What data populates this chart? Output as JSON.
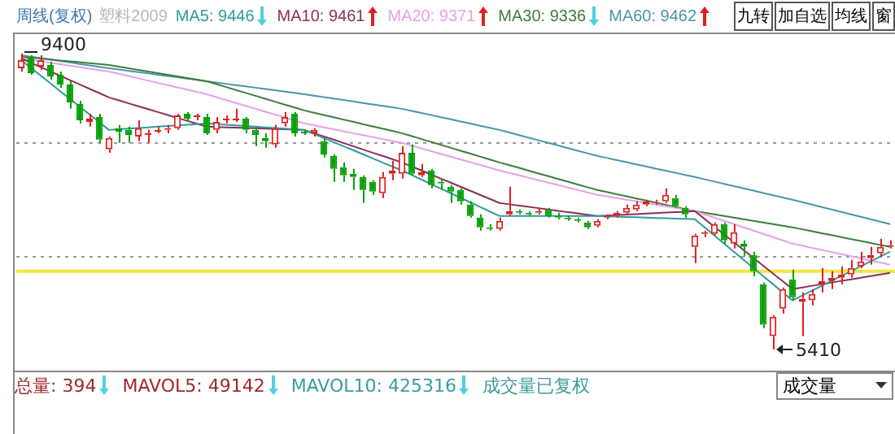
{
  "chart_data": {
    "type": "candlestick",
    "title": "周线(复权)",
    "subtitle": "塑料2009",
    "categories": [
      null,
      null,
      null,
      null,
      null,
      null,
      null,
      null,
      null,
      null,
      null,
      null,
      null,
      null,
      null,
      null,
      null,
      null,
      null,
      null,
      null,
      null,
      null,
      null,
      null,
      null,
      null,
      null,
      null,
      null,
      null,
      null,
      null,
      null,
      null,
      null,
      null,
      null,
      null,
      null,
      null,
      null,
      null,
      null,
      null,
      null,
      null,
      null,
      null,
      null,
      null,
      null,
      null,
      null,
      null,
      null,
      null,
      null,
      null,
      null,
      null,
      null,
      null,
      null,
      null,
      null,
      null,
      null,
      null,
      null,
      null,
      null,
      null,
      null,
      null,
      null,
      null,
      null,
      null,
      null,
      null,
      null,
      null,
      null,
      null,
      null,
      null,
      null,
      null,
      null
    ],
    "ohlc": [
      [
        9203,
        9400,
        9159,
        9313
      ],
      [
        9357,
        9378,
        9116,
        9138
      ],
      [
        9225,
        9378,
        9181,
        9313
      ],
      [
        9247,
        9291,
        9050,
        9094
      ],
      [
        9116,
        9159,
        8940,
        8984
      ],
      [
        8984,
        9028,
        8656,
        8743
      ],
      [
        8721,
        8765,
        8459,
        8502
      ],
      [
        8480,
        8590,
        8415,
        8524
      ],
      [
        8546,
        8590,
        8196,
        8240
      ],
      [
        8108,
        8283,
        8064,
        8262
      ],
      [
        8393,
        8437,
        8196,
        8349
      ],
      [
        8371,
        8415,
        8196,
        8305
      ],
      [
        8283,
        8502,
        8218,
        8393
      ],
      [
        8305,
        8371,
        8196,
        8327
      ],
      [
        8349,
        8415,
        8327,
        8371
      ],
      [
        8371,
        8437,
        8327,
        8393
      ],
      [
        8393,
        8590,
        8371,
        8568
      ],
      [
        8590,
        8612,
        8480,
        8524
      ],
      [
        8546,
        8590,
        8502,
        8568
      ],
      [
        8546,
        8590,
        8305,
        8327
      ],
      [
        8371,
        8546,
        8327,
        8480
      ],
      [
        8502,
        8568,
        8459,
        8524
      ],
      [
        8502,
        8656,
        8480,
        8524
      ],
      [
        8524,
        8546,
        8327,
        8371
      ],
      [
        8371,
        8393,
        8152,
        8305
      ],
      [
        8262,
        8327,
        8130,
        8218
      ],
      [
        8174,
        8437,
        8130,
        8393
      ],
      [
        8459,
        8612,
        8415,
        8546
      ],
      [
        8590,
        8612,
        8283,
        8327
      ],
      [
        8349,
        8371,
        8305,
        8327
      ],
      [
        8327,
        8393,
        8283,
        8371
      ],
      [
        8218,
        8262,
        7999,
        8042
      ],
      [
        8021,
        8042,
        7670,
        7845
      ],
      [
        7867,
        7933,
        7670,
        7758
      ],
      [
        7780,
        7845,
        7561,
        7736
      ],
      [
        7736,
        7758,
        7386,
        7561
      ],
      [
        7670,
        7692,
        7495,
        7539
      ],
      [
        7517,
        7802,
        7451,
        7736
      ],
      [
        7780,
        7955,
        7692,
        7824
      ],
      [
        7780,
        8152,
        7714,
        8064
      ],
      [
        8064,
        8174,
        7758,
        7780
      ],
      [
        7758,
        7911,
        7736,
        7802
      ],
      [
        7824,
        7845,
        7583,
        7627
      ],
      [
        7670,
        7714,
        7561,
        7648
      ],
      [
        7605,
        7627,
        7386,
        7539
      ],
      [
        7561,
        7583,
        7364,
        7407
      ],
      [
        7364,
        7407,
        7188,
        7210
      ],
      [
        7188,
        7232,
        7013,
        7057
      ],
      [
        7057,
        7101,
        7013,
        7035
      ],
      [
        7035,
        7188,
        7013,
        7145
      ],
      [
        7232,
        7605,
        7210,
        7276
      ],
      [
        7276,
        7298,
        7232,
        7254
      ],
      [
        7254,
        7276,
        7210,
        7232
      ],
      [
        7254,
        7320,
        7232,
        7276
      ],
      [
        7298,
        7320,
        7188,
        7210
      ],
      [
        7210,
        7254,
        7166,
        7188
      ],
      [
        7188,
        7210,
        7145,
        7166
      ],
      [
        7166,
        7188,
        7123,
        7145
      ],
      [
        7123,
        7145,
        7035,
        7057
      ],
      [
        7079,
        7166,
        7057,
        7145
      ],
      [
        7188,
        7232,
        7166,
        7210
      ],
      [
        7210,
        7276,
        7188,
        7254
      ],
      [
        7254,
        7364,
        7232,
        7320
      ],
      [
        7298,
        7407,
        7276,
        7364
      ],
      [
        7364,
        7429,
        7342,
        7407
      ],
      [
        7386,
        7429,
        7364,
        7400
      ],
      [
        7407,
        7583,
        7386,
        7495
      ],
      [
        7451,
        7495,
        7320,
        7342
      ],
      [
        7320,
        7342,
        7188,
        7232
      ],
      [
        6794,
        6970,
        6575,
        6947
      ],
      [
        6970,
        7013,
        6926,
        6992
      ],
      [
        6970,
        7123,
        6947,
        7101
      ],
      [
        7101,
        7123,
        6838,
        6882
      ],
      [
        6838,
        7101,
        6772,
        6992
      ],
      [
        6838,
        6882,
        6663,
        6794
      ],
      [
        6685,
        6728,
        6400,
        6466
      ],
      [
        6291,
        6313,
        5699,
        5743
      ],
      [
        5590,
        5874,
        5410,
        5852
      ],
      [
        5962,
        6247,
        5896,
        6225
      ],
      [
        6356,
        6488,
        6072,
        6115
      ],
      [
        6050,
        6181,
        5590,
        6093
      ],
      [
        6072,
        6225,
        6006,
        6159
      ],
      [
        6291,
        6510,
        6181,
        6334
      ],
      [
        6334,
        6466,
        6225,
        6378
      ],
      [
        6378,
        6532,
        6291,
        6422
      ],
      [
        6422,
        6619,
        6378,
        6510
      ],
      [
        6532,
        6728,
        6510,
        6597
      ],
      [
        6641,
        6794,
        6553,
        6685
      ],
      [
        6707,
        6904,
        6663,
        6794
      ],
      [
        6794,
        6882,
        6772,
        6816
      ]
    ],
    "series": [
      {
        "name": "MA5: 9446",
        "type": "line",
        "color": "#2e9c9c",
        "values": [
          9313,
          9208,
          9104,
          8999,
          8894,
          8790,
          8685,
          8580,
          8476,
          8371,
          8380,
          8389,
          8397,
          8406,
          8415,
          8424,
          8433,
          8441,
          8450,
          8459,
          8450,
          8441,
          8433,
          8424,
          8415,
          8406,
          8397,
          8389,
          8380,
          8371,
          8316,
          8262,
          8207,
          8152,
          8098,
          8043,
          7988,
          7933,
          7879,
          7824,
          7763,
          7701,
          7640,
          7578,
          7517,
          7456,
          7394,
          7333,
          7271,
          7210,
          7210,
          7210,
          7210,
          7210,
          7210,
          7210,
          7210,
          7210,
          7210,
          7210,
          7206,
          7202,
          7197,
          7193,
          7188,
          7184,
          7180,
          7175,
          7171,
          7166,
          7057,
          6947,
          6838,
          6728,
          6619,
          6510,
          6400,
          6291,
          6181,
          6072,
          6138,
          6203,
          6269,
          6335,
          6400,
          6466,
          6532,
          6597,
          6663,
          6729
        ]
      },
      {
        "name": "MA10: 9461",
        "type": "line",
        "color": "#8b2f5a",
        "values": [
          9335,
          9277,
          9218,
          9160,
          9101,
          9043,
          8984,
          8926,
          8868,
          8809,
          8770,
          8730,
          8691,
          8651,
          8612,
          8573,
          8533,
          8494,
          8454,
          8415,
          8411,
          8406,
          8402,
          8397,
          8393,
          8389,
          8384,
          8380,
          8375,
          8371,
          8327,
          8283,
          8240,
          8196,
          8152,
          8108,
          8064,
          8021,
          7977,
          7933,
          7878,
          7824,
          7769,
          7714,
          7660,
          7605,
          7550,
          7495,
          7441,
          7386,
          7368,
          7351,
          7333,
          7316,
          7298,
          7280,
          7263,
          7245,
          7228,
          7210,
          7217,
          7223,
          7230,
          7236,
          7243,
          7250,
          7256,
          7263,
          7269,
          7276,
          7171,
          7066,
          6961,
          6856,
          6750,
          6645,
          6540,
          6435,
          6330,
          6225,
          6247,
          6269,
          6291,
          6313,
          6335,
          6356,
          6378,
          6400,
          6422,
          6444
        ]
      },
      {
        "name": "MA20: 9371",
        "type": "line",
        "color": "#e8a0e8",
        "values": [
          9335,
          9315,
          9296,
          9276,
          9257,
          9237,
          9218,
          9198,
          9179,
          9159,
          9128,
          9098,
          9067,
          9037,
          9006,
          8976,
          8945,
          8914,
          8884,
          8853,
          8814,
          8774,
          8735,
          8695,
          8656,
          8617,
          8577,
          8538,
          8498,
          8459,
          8433,
          8406,
          8380,
          8354,
          8327,
          8301,
          8275,
          8249,
          8222,
          8196,
          8159,
          8122,
          8084,
          8047,
          8010,
          7973,
          7936,
          7898,
          7861,
          7824,
          7791,
          7758,
          7725,
          7692,
          7660,
          7627,
          7594,
          7561,
          7528,
          7495,
          7473,
          7451,
          7429,
          7407,
          7386,
          7364,
          7342,
          7320,
          7298,
          7276,
          7232,
          7188,
          7145,
          7101,
          7057,
          7013,
          6970,
          6926,
          6882,
          6838,
          6810,
          6781,
          6753,
          6724,
          6696,
          6667,
          6639,
          6610,
          6582,
          6553
        ]
      },
      {
        "name": "MA30: 9336",
        "type": "line",
        "color": "#3d7d3d",
        "values": [
          9357,
          9345,
          9333,
          9320,
          9308,
          9296,
          9284,
          9272,
          9259,
          9247,
          9225,
          9203,
          9181,
          9159,
          9138,
          9116,
          9094,
          9072,
          9050,
          9028,
          8989,
          8949,
          8910,
          8870,
          8831,
          8791,
          8752,
          8713,
          8673,
          8634,
          8603,
          8573,
          8542,
          8511,
          8481,
          8450,
          8419,
          8388,
          8358,
          8327,
          8288,
          8248,
          8209,
          8170,
          8130,
          8091,
          8051,
          8012,
          7973,
          7933,
          7896,
          7859,
          7822,
          7784,
          7747,
          7710,
          7673,
          7635,
          7598,
          7561,
          7533,
          7504,
          7476,
          7447,
          7419,
          7390,
          7362,
          7333,
          7305,
          7276,
          7254,
          7232,
          7210,
          7188,
          7166,
          7145,
          7123,
          7101,
          7079,
          7057,
          7031,
          7004,
          6978,
          6952,
          6926,
          6899,
          6873,
          6847,
          6820,
          6794
        ]
      },
      {
        "name": "MA60: 9462",
        "type": "line",
        "color": "#4a96a6",
        "values": [
          9378,
          9359,
          9339,
          9320,
          9300,
          9281,
          9261,
          9242,
          9222,
          9203,
          9186,
          9168,
          9151,
          9133,
          9116,
          9098,
          9081,
          9063,
          9046,
          9028,
          9011,
          8993,
          8976,
          8958,
          8941,
          8923,
          8906,
          8888,
          8871,
          8853,
          8833,
          8814,
          8794,
          8774,
          8755,
          8735,
          8715,
          8695,
          8676,
          8656,
          8628,
          8599,
          8571,
          8542,
          8514,
          8485,
          8457,
          8428,
          8400,
          8371,
          8336,
          8301,
          8266,
          8231,
          8196,
          8161,
          8126,
          8091,
          8056,
          8021,
          7993,
          7964,
          7936,
          7907,
          7879,
          7850,
          7822,
          7793,
          7765,
          7736,
          7705,
          7675,
          7644,
          7613,
          7583,
          7552,
          7521,
          7490,
          7460,
          7429,
          7396,
          7363,
          7331,
          7298,
          7265,
          7232,
          7199,
          7166,
          7134,
          7101
        ]
      }
    ],
    "yticks": [
      {
        "value": 8196,
        "label": null
      },
      {
        "value": 6655,
        "label": null
      }
    ],
    "grid": "y",
    "tick_labels": false,
    "legend": "top",
    "ref_lines": [
      {
        "axis": "y",
        "value": 6466,
        "color": "#f2e640"
      }
    ],
    "annotations": [
      "9400",
      "5410",
      "总量: 394",
      "MAVOL5: 49142",
      "MAVOL10: 425316",
      "成交量已复权",
      "成交量",
      "九转",
      "加自选",
      "均线",
      "窗"
    ]
  }
}
